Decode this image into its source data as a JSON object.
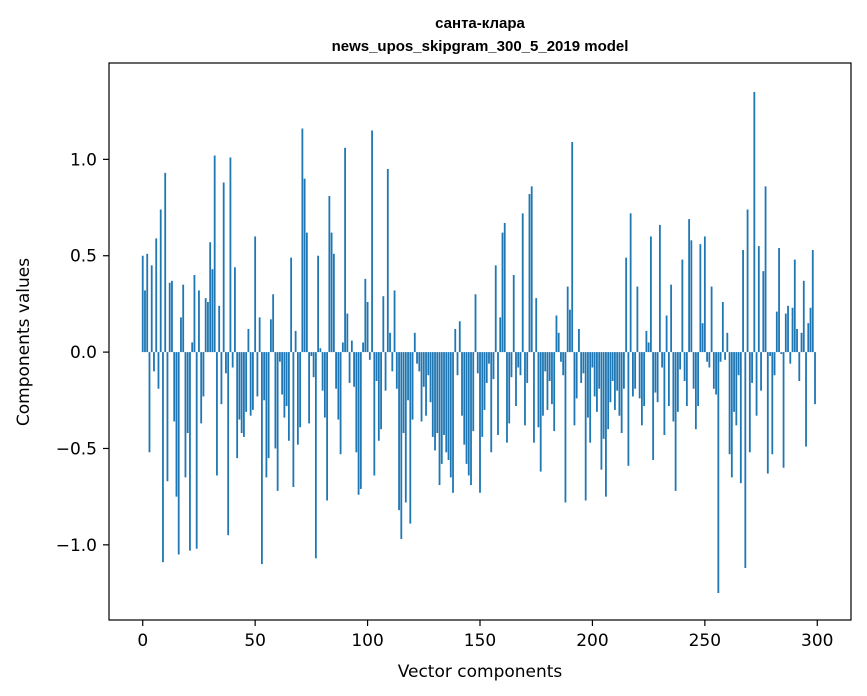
{
  "chart_data": {
    "type": "bar",
    "title": "санта-клара",
    "subtitle": "news_upos_skipgram_300_5_2019 model",
    "xlabel": "Vector components",
    "ylabel": "Components values",
    "xlim": [
      -15,
      315
    ],
    "ylim": [
      -1.39,
      1.5
    ],
    "xticks": [
      0,
      50,
      100,
      150,
      200,
      250,
      300
    ],
    "xtick_labels": [
      "0",
      "50",
      "100",
      "150",
      "200",
      "250",
      "300"
    ],
    "yticks": [
      -1.0,
      -0.5,
      0.0,
      0.5,
      1.0
    ],
    "ytick_labels": [
      "−1.0",
      "−0.5",
      "0.0",
      "0.5",
      "1.0"
    ],
    "grid": false,
    "bar_color": "#1f77b4",
    "x": [
      0,
      1,
      2,
      3,
      4,
      5,
      6,
      7,
      8,
      9,
      10,
      11,
      12,
      13,
      14,
      15,
      16,
      17,
      18,
      19,
      20,
      21,
      22,
      23,
      24,
      25,
      26,
      27,
      28,
      29,
      30,
      31,
      32,
      33,
      34,
      35,
      36,
      37,
      38,
      39,
      40,
      41,
      42,
      43,
      44,
      45,
      46,
      47,
      48,
      49,
      50,
      51,
      52,
      53,
      54,
      55,
      56,
      57,
      58,
      59,
      60,
      61,
      62,
      63,
      64,
      65,
      66,
      67,
      68,
      69,
      70,
      71,
      72,
      73,
      74,
      75,
      76,
      77,
      78,
      79,
      80,
      81,
      82,
      83,
      84,
      85,
      86,
      87,
      88,
      89,
      90,
      91,
      92,
      93,
      94,
      95,
      96,
      97,
      98,
      99,
      100,
      101,
      102,
      103,
      104,
      105,
      106,
      107,
      108,
      109,
      110,
      111,
      112,
      113,
      114,
      115,
      116,
      117,
      118,
      119,
      120,
      121,
      122,
      123,
      124,
      125,
      126,
      127,
      128,
      129,
      130,
      131,
      132,
      133,
      134,
      135,
      136,
      137,
      138,
      139,
      140,
      141,
      142,
      143,
      144,
      145,
      146,
      147,
      148,
      149,
      150,
      151,
      152,
      153,
      154,
      155,
      156,
      157,
      158,
      159,
      160,
      161,
      162,
      163,
      164,
      165,
      166,
      167,
      168,
      169,
      170,
      171,
      172,
      173,
      174,
      175,
      176,
      177,
      178,
      179,
      180,
      181,
      182,
      183,
      184,
      185,
      186,
      187,
      188,
      189,
      190,
      191,
      192,
      193,
      194,
      195,
      196,
      197,
      198,
      199,
      200,
      201,
      202,
      203,
      204,
      205,
      206,
      207,
      208,
      209,
      210,
      211,
      212,
      213,
      214,
      215,
      216,
      217,
      218,
      219,
      220,
      221,
      222,
      223,
      224,
      225,
      226,
      227,
      228,
      229,
      230,
      231,
      232,
      233,
      234,
      235,
      236,
      237,
      238,
      239,
      240,
      241,
      242,
      243,
      244,
      245,
      246,
      247,
      248,
      249,
      250,
      251,
      252,
      253,
      254,
      255,
      256,
      257,
      258,
      259,
      260,
      261,
      262,
      263,
      264,
      265,
      266,
      267,
      268,
      269,
      270,
      271,
      272,
      273,
      274,
      275,
      276,
      277,
      278,
      279,
      280,
      281,
      282,
      283,
      284,
      285,
      286,
      287,
      288,
      289,
      290,
      291,
      292,
      293,
      294,
      295,
      296,
      297,
      298,
      299
    ],
    "values": [
      0.5,
      0.32,
      0.51,
      -0.52,
      0.45,
      -0.1,
      0.59,
      -0.19,
      0.74,
      -1.09,
      0.93,
      -0.67,
      0.36,
      0.37,
      -0.36,
      -0.75,
      -1.05,
      0.18,
      0.35,
      -0.65,
      -0.42,
      -1.03,
      0.05,
      0.4,
      -1.02,
      0.32,
      -0.37,
      -0.23,
      0.28,
      0.26,
      0.57,
      0.43,
      1.02,
      -0.64,
      0.24,
      -0.27,
      0.88,
      -0.11,
      -0.95,
      1.01,
      -0.08,
      0.44,
      -0.55,
      -0.35,
      -0.42,
      -0.44,
      -0.31,
      0.12,
      -0.33,
      -0.3,
      0.6,
      -0.23,
      0.18,
      -1.1,
      -0.25,
      -0.65,
      -0.55,
      0.17,
      0.3,
      -0.5,
      -0.72,
      -0.05,
      -0.22,
      -0.34,
      -0.28,
      -0.46,
      0.49,
      -0.7,
      0.11,
      -0.48,
      -0.39,
      1.16,
      0.9,
      0.62,
      -0.37,
      -0.02,
      -0.13,
      -1.07,
      0.5,
      0.02,
      -0.2,
      -0.34,
      -0.77,
      0.81,
      0.62,
      0.51,
      -0.19,
      -0.35,
      -0.53,
      0.05,
      1.06,
      0.2,
      -0.16,
      0.06,
      -0.18,
      -0.52,
      -0.74,
      -0.71,
      0.05,
      0.38,
      0.26,
      -0.04,
      1.15,
      -0.64,
      -0.15,
      -0.46,
      -0.4,
      0.29,
      -0.2,
      0.95,
      0.1,
      -0.1,
      0.32,
      -0.19,
      -0.82,
      -0.97,
      -0.42,
      -0.78,
      -0.25,
      -0.89,
      -0.35,
      0.1,
      -0.06,
      -0.1,
      -0.36,
      -0.18,
      -0.33,
      -0.12,
      -0.26,
      -0.44,
      -0.51,
      -0.42,
      -0.69,
      -0.58,
      -0.43,
      -0.52,
      -0.56,
      -0.65,
      -0.73,
      0.12,
      -0.12,
      0.16,
      -0.33,
      -0.48,
      -0.58,
      -0.64,
      -0.69,
      -0.41,
      0.3,
      -0.11,
      -0.73,
      -0.44,
      -0.3,
      -0.16,
      -0.06,
      -0.52,
      -0.14,
      0.45,
      -0.43,
      0.18,
      0.62,
      0.67,
      -0.47,
      -0.37,
      -0.13,
      0.4,
      -0.28,
      -0.08,
      -0.12,
      0.72,
      -0.38,
      -0.16,
      0.82,
      0.86,
      -0.47,
      0.28,
      -0.39,
      -0.62,
      -0.33,
      -0.1,
      -0.3,
      -0.15,
      -0.27,
      -0.41,
      0.19,
      0.1,
      -0.05,
      -0.12,
      -0.78,
      0.34,
      0.22,
      1.09,
      -0.38,
      -0.24,
      0.12,
      -0.16,
      -0.11,
      -0.77,
      -0.34,
      -0.47,
      -0.08,
      -0.23,
      -0.31,
      -0.19,
      -0.61,
      -0.45,
      -0.75,
      -0.4,
      -0.26,
      -0.15,
      -0.3,
      -0.2,
      -0.33,
      -0.42,
      -0.19,
      0.49,
      -0.59,
      0.72,
      -0.23,
      -0.19,
      0.34,
      -0.24,
      -0.38,
      -0.28,
      0.11,
      0.05,
      0.6,
      -0.56,
      -0.21,
      -0.26,
      0.66,
      -0.08,
      -0.43,
      0.19,
      -0.28,
      0.35,
      -0.36,
      -0.72,
      -0.31,
      -0.09,
      0.48,
      -0.15,
      -0.28,
      0.69,
      0.58,
      -0.19,
      -0.4,
      -0.28,
      0.56,
      0.15,
      0.6,
      -0.05,
      -0.08,
      0.34,
      -0.19,
      -0.22,
      -1.25,
      -0.05,
      0.26,
      -0.04,
      0.1,
      -0.53,
      -0.65,
      -0.31,
      -0.38,
      -0.12,
      -0.68,
      0.53,
      -1.12,
      0.74,
      -0.52,
      -0.16,
      1.35,
      -0.33,
      0.55,
      -0.2,
      0.42,
      0.86,
      -0.63,
      -0.02,
      -0.53,
      -0.12,
      0.21,
      0.54,
      -0.01,
      -0.6,
      0.2,
      0.24,
      -0.06,
      0.23,
      0.48,
      0.12,
      -0.15,
      0.1,
      0.37,
      -0.49,
      0.15,
      0.23,
      0.53,
      -0.27
    ]
  }
}
